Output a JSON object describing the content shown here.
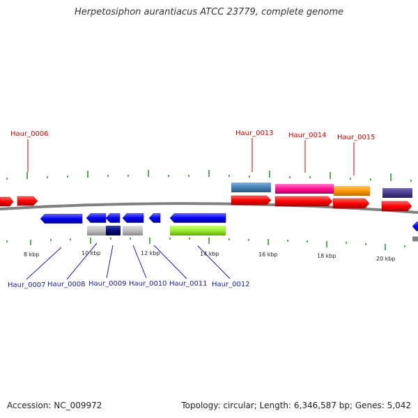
{
  "title": "Herpetosiphon aurantiacus ATCC 23779, complete genome",
  "footer": {
    "accession": "Accession: NC_009972",
    "topology": "Topology: circular; Length: 6,346,587 bp; Genes: 5,042"
  },
  "kbp_labels": [
    "8 kbp",
    "10 kbp",
    "12 kbp",
    "14 kbp",
    "16 kbp",
    "18 kbp",
    "20 kbp"
  ],
  "top_gene_labels": [
    "Haur_0006",
    "Haur_0013",
    "Haur_0014",
    "Haur_0015"
  ],
  "bottom_gene_labels": [
    "Haur_0007",
    "Haur_0008",
    "Haur_0009",
    "Haur_0010",
    "Haur_0011",
    "Haur_0012"
  ],
  "colors": {
    "forward_gene": "#ff0000",
    "reverse_gene": "#0000ee",
    "backbone": "#808080",
    "tick": "#228b22",
    "label_top": "#cc0000",
    "label_bottom": "#1a1aaa"
  }
}
